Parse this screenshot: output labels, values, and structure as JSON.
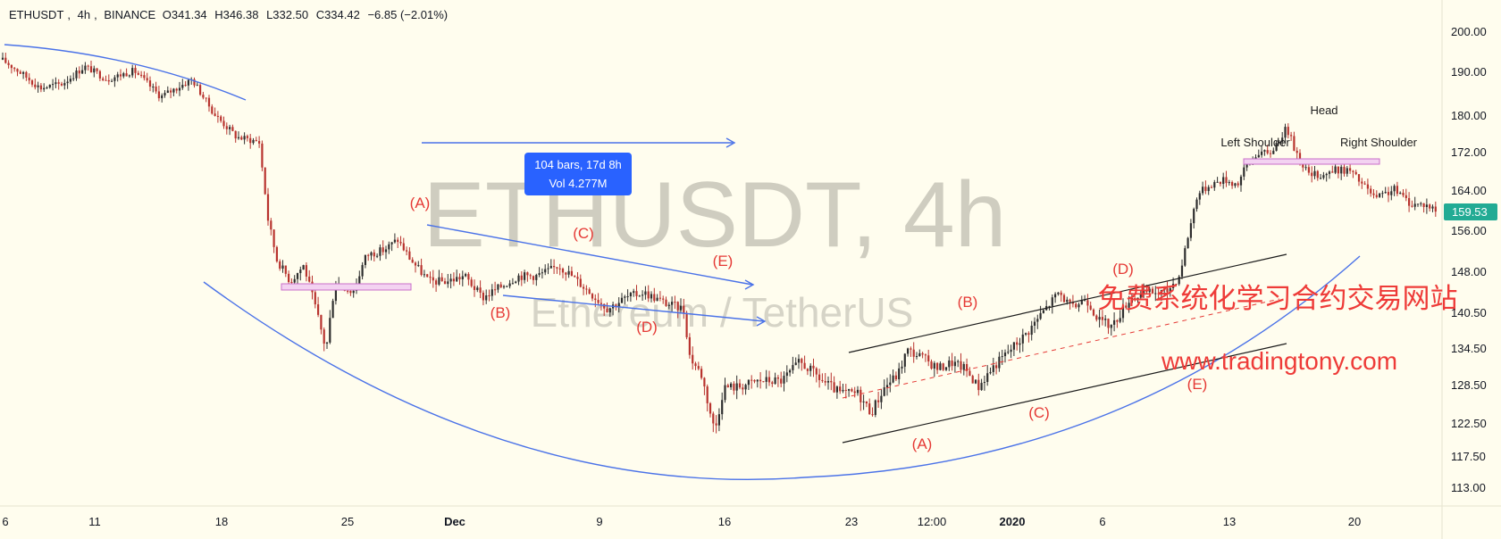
{
  "header": {
    "symbol": "ETHUSDT",
    "interval": "4h",
    "exchange": "BINANCE",
    "open": "O341.34",
    "high": "H346.38",
    "low": "L332.50",
    "close": "C334.42",
    "change": "−6.85 (−2.01%)"
  },
  "watermark": {
    "title": "ETHUSDT, 4h",
    "subtitle": "Ethereum / TetherUS"
  },
  "promo": {
    "chinese": "免费系统化学习合约交易网站",
    "url": "www.tradingtony.com"
  },
  "measure_tooltip": {
    "line1": "104 bars, 17d 8h",
    "line2": "Vol 4.277M"
  },
  "price_badge": "159.53",
  "colors": {
    "background": "#fffdee",
    "up": "#2e2e2e",
    "down": "#b8332e",
    "blue_line": "#4a72e8",
    "wave_label": "#e53935",
    "badge": "#22ab94",
    "zone": "#c86fc9"
  },
  "chart_data": {
    "type": "candlestick",
    "y_ticks": [
      "200.00",
      "190.00",
      "180.00",
      "172.00",
      "164.00",
      "156.00",
      "148.00",
      "140.50",
      "134.50",
      "128.50",
      "122.50",
      "117.50",
      "113.00"
    ],
    "x_ticks": [
      "6",
      "11",
      "18",
      "25",
      "Dec",
      "9",
      "16",
      "23",
      "12:00",
      "2020",
      "6",
      "13",
      "20"
    ],
    "wave_labels_left": [
      "(A)",
      "(B)",
      "(C)",
      "(D)",
      "(E)"
    ],
    "wave_labels_right": [
      "(A)",
      "(B)",
      "(C)",
      "(D)",
      "(E)"
    ],
    "pattern_labels": [
      "Left Shoulder",
      "Head",
      "Right Shoulder"
    ],
    "last_price": 159.53,
    "price_path": [
      [
        0,
        193
      ],
      [
        20,
        190
      ],
      [
        45,
        186
      ],
      [
        70,
        187
      ],
      [
        95,
        191
      ],
      [
        120,
        188
      ],
      [
        150,
        190
      ],
      [
        180,
        184
      ],
      [
        215,
        188
      ],
      [
        240,
        180
      ],
      [
        265,
        175
      ],
      [
        290,
        174
      ],
      [
        300,
        158
      ],
      [
        310,
        150
      ],
      [
        325,
        146
      ],
      [
        340,
        149
      ],
      [
        355,
        140
      ],
      [
        365,
        134
      ],
      [
        375,
        146
      ],
      [
        395,
        144
      ],
      [
        410,
        151
      ],
      [
        430,
        152
      ],
      [
        445,
        154
      ],
      [
        460,
        150
      ],
      [
        480,
        146
      ],
      [
        500,
        146
      ],
      [
        520,
        147
      ],
      [
        540,
        143
      ],
      [
        560,
        145
      ],
      [
        580,
        147
      ],
      [
        600,
        147
      ],
      [
        615,
        148
      ],
      [
        625,
        149
      ],
      [
        640,
        147
      ],
      [
        660,
        144
      ],
      [
        680,
        141
      ],
      [
        700,
        143
      ],
      [
        720,
        144
      ],
      [
        745,
        142
      ],
      [
        765,
        141
      ],
      [
        772,
        133
      ],
      [
        785,
        130
      ],
      [
        795,
        124
      ],
      [
        800,
        121
      ],
      [
        810,
        128
      ],
      [
        825,
        128
      ],
      [
        850,
        129
      ],
      [
        875,
        129
      ],
      [
        895,
        132
      ],
      [
        905,
        131
      ],
      [
        920,
        129
      ],
      [
        940,
        127
      ],
      [
        960,
        127
      ],
      [
        975,
        124
      ],
      [
        990,
        128
      ],
      [
        1005,
        130
      ],
      [
        1015,
        134
      ],
      [
        1030,
        133
      ],
      [
        1050,
        131
      ],
      [
        1065,
        132
      ],
      [
        1080,
        131
      ],
      [
        1095,
        128
      ],
      [
        1110,
        131
      ],
      [
        1130,
        134
      ],
      [
        1150,
        137
      ],
      [
        1170,
        141
      ],
      [
        1185,
        144
      ],
      [
        1200,
        141
      ],
      [
        1215,
        143
      ],
      [
        1230,
        139
      ],
      [
        1245,
        138
      ],
      [
        1265,
        143
      ],
      [
        1285,
        144
      ],
      [
        1305,
        144
      ],
      [
        1320,
        147
      ],
      [
        1330,
        155
      ],
      [
        1340,
        163
      ],
      [
        1355,
        165
      ],
      [
        1370,
        166
      ],
      [
        1385,
        165
      ],
      [
        1395,
        169
      ],
      [
        1410,
        172
      ],
      [
        1420,
        171
      ],
      [
        1430,
        174
      ],
      [
        1440,
        177
      ],
      [
        1450,
        172
      ],
      [
        1465,
        167
      ],
      [
        1480,
        167
      ],
      [
        1495,
        168
      ],
      [
        1510,
        168
      ],
      [
        1525,
        165
      ],
      [
        1540,
        162
      ],
      [
        1560,
        164
      ],
      [
        1580,
        161
      ],
      [
        1595,
        161
      ],
      [
        1610,
        159.53
      ]
    ]
  }
}
